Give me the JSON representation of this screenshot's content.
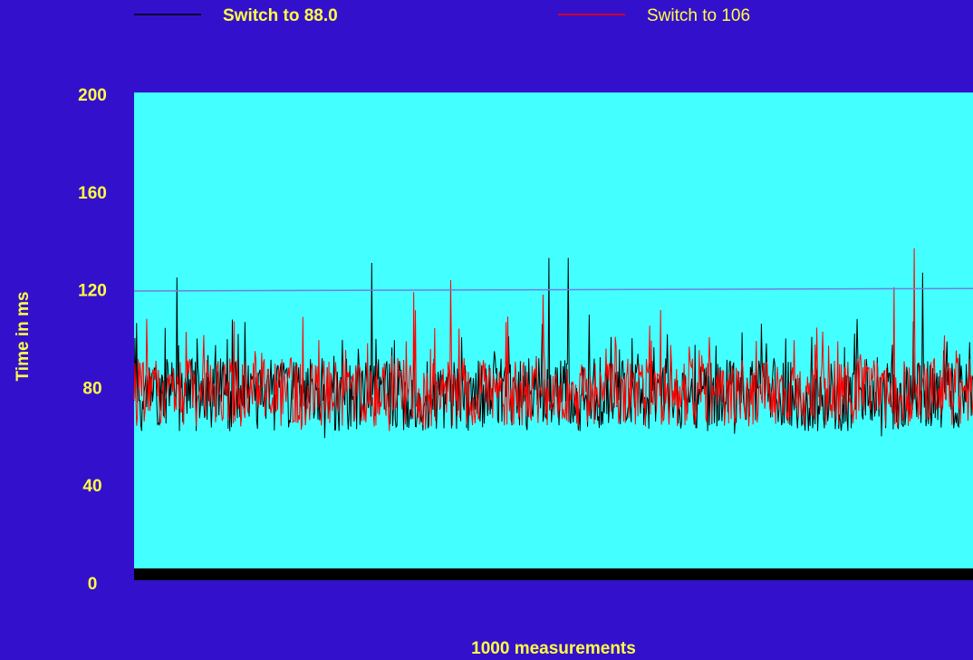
{
  "colors": {
    "background": "#3311cc",
    "plot_bg": "#44ffff",
    "text": "#ffff44",
    "series_1": "#000000",
    "series_2": "#ff0000",
    "reference_line": "#6f7fe0",
    "baseline_bar": "#000000"
  },
  "chart_data": {
    "type": "line",
    "xlabel": "1000 measurements",
    "ylabel": "Time in ms",
    "ylim": [
      0,
      200
    ],
    "xlim": [
      1,
      1000
    ],
    "yticks": [
      "200",
      "160",
      "120",
      "80",
      "40",
      "0"
    ],
    "grid": false,
    "legend_position": "top",
    "reference_line": {
      "y_start": 119.5,
      "y_end": 120.5
    },
    "series": [
      {
        "name": "Switch to 88.0",
        "base": 70,
        "spread": 30,
        "seed": 12345,
        "spikes": [
          [
            52,
            125
          ],
          [
            284,
            131
          ],
          [
            495,
            133
          ],
          [
            518,
            133
          ],
          [
            940,
            127
          ]
        ]
      },
      {
        "name": "Switch to 106",
        "base": 72,
        "spread": 28,
        "seed": 98765,
        "spikes": [
          [
            334,
            119
          ],
          [
            378,
            124
          ],
          [
            488,
            118
          ],
          [
            906,
            121
          ],
          [
            930,
            137
          ]
        ]
      }
    ]
  }
}
